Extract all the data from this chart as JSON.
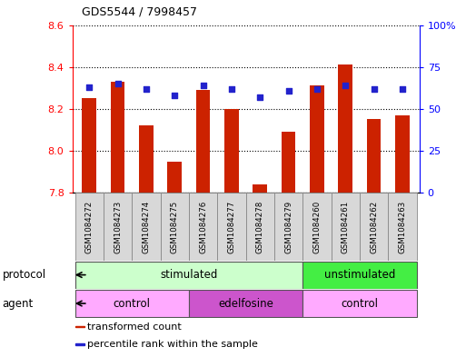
{
  "title": "GDS5544 / 7998457",
  "samples": [
    "GSM1084272",
    "GSM1084273",
    "GSM1084274",
    "GSM1084275",
    "GSM1084276",
    "GSM1084277",
    "GSM1084278",
    "GSM1084279",
    "GSM1084260",
    "GSM1084261",
    "GSM1084262",
    "GSM1084263"
  ],
  "bar_values": [
    8.25,
    8.33,
    8.12,
    7.95,
    8.29,
    8.2,
    7.84,
    8.09,
    8.31,
    8.41,
    8.15,
    8.17
  ],
  "dot_values": [
    63,
    65,
    62,
    58,
    64,
    62,
    57,
    61,
    62,
    64,
    62,
    62
  ],
  "bar_bottom": 7.8,
  "ylim_left": [
    7.8,
    8.6
  ],
  "ylim_right": [
    0,
    100
  ],
  "yticks_left": [
    7.8,
    8.0,
    8.2,
    8.4,
    8.6
  ],
  "yticks_right": [
    0,
    25,
    50,
    75,
    100
  ],
  "ytick_labels_right": [
    "0",
    "25",
    "50",
    "75",
    "100%"
  ],
  "bar_color": "#cc2200",
  "dot_color": "#2222cc",
  "protocol_groups": [
    {
      "label": "stimulated",
      "start": 0,
      "end": 8,
      "color": "#ccffcc"
    },
    {
      "label": "unstimulated",
      "start": 8,
      "end": 12,
      "color": "#44ee44"
    }
  ],
  "agent_groups": [
    {
      "label": "control",
      "start": 0,
      "end": 4,
      "color": "#ffaaff"
    },
    {
      "label": "edelfosine",
      "start": 4,
      "end": 8,
      "color": "#cc55cc"
    },
    {
      "label": "control",
      "start": 8,
      "end": 12,
      "color": "#ffaaff"
    }
  ],
  "legend_items": [
    {
      "label": "transformed count",
      "color": "#cc2200"
    },
    {
      "label": "percentile rank within the sample",
      "color": "#2222cc"
    }
  ],
  "protocol_label": "protocol",
  "agent_label": "agent",
  "figsize": [
    5.13,
    3.93
  ],
  "dpi": 100
}
